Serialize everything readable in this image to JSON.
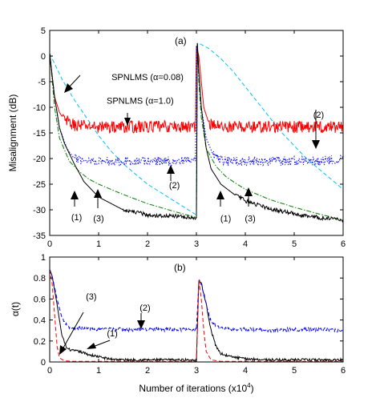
{
  "chart_data": [
    {
      "type": "line",
      "panel_label": "(a)",
      "xlabel": "",
      "ylabel": "Misalignment (dB)",
      "xlim": [
        0,
        6
      ],
      "ylim": [
        -35,
        5
      ],
      "xticks": [
        "0",
        "1",
        "2",
        "3",
        "4",
        "5",
        "6"
      ],
      "yticks": [
        "5",
        "0",
        "-5",
        "-10",
        "-15",
        "-20",
        "-25",
        "-30",
        "-35"
      ],
      "series": [
        {
          "name": "SPNLMS (α=0.08)",
          "color": "#00bfff",
          "style": "dashed",
          "x": [
            0,
            0.25,
            0.5,
            0.75,
            1.0,
            1.25,
            1.5,
            1.75,
            2.0,
            2.25,
            2.5,
            2.75,
            3.0,
            3.02,
            3.05,
            3.25,
            3.5,
            3.75,
            4.0,
            4.25,
            4.5,
            4.75,
            5.0,
            5.25,
            5.5,
            5.75,
            6.0
          ],
          "y": [
            0.5,
            -4.5,
            -8.5,
            -12,
            -15.5,
            -18.5,
            -21,
            -23,
            -25,
            -26.5,
            -28,
            -29.5,
            -31,
            2.5,
            2.5,
            1.5,
            -0.5,
            -3,
            -6,
            -9,
            -12,
            -15,
            -17.5,
            -20,
            -22,
            -24,
            -26
          ]
        },
        {
          "name": "SPNLMS (α=1.0)",
          "color": "#ff0000",
          "style": "solid",
          "noise": 1.2,
          "x": [
            0,
            0.05,
            0.1,
            0.2,
            0.3,
            0.5,
            1.0,
            1.5,
            2.0,
            2.5,
            2.98,
            3.0,
            3.05,
            3.1,
            3.15,
            3.25,
            3.5,
            4.0,
            4.5,
            5.0,
            5.5,
            6.0
          ],
          "y": [
            0.5,
            -4,
            -8,
            -11,
            -12.5,
            -13.5,
            -13.8,
            -13.8,
            -13.8,
            -13.8,
            -13.8,
            2,
            0,
            -5,
            -10,
            -13,
            -13.8,
            -13.8,
            -13.8,
            -13.8,
            -13.8,
            -13.8
          ]
        },
        {
          "name": "(2)",
          "color": "#0000ff",
          "style": "dotted",
          "noise": 0.9,
          "x": [
            0,
            0.1,
            0.2,
            0.35,
            0.5,
            1.0,
            1.5,
            2.0,
            2.5,
            2.98,
            3.0,
            3.05,
            3.1,
            3.2,
            3.35,
            3.5,
            4.0,
            4.5,
            5.0,
            5.5,
            6.0
          ],
          "y": [
            0.5,
            -8,
            -14,
            -18,
            -20,
            -20.5,
            -20.5,
            -20.5,
            -20.5,
            -20.5,
            2,
            -3,
            -10,
            -16,
            -19.5,
            -20.5,
            -20.5,
            -20.5,
            -20.5,
            -20.5,
            -20
          ]
        },
        {
          "name": "(3)",
          "color": "#008000",
          "style": "dashdot",
          "x": [
            0,
            0.1,
            0.2,
            0.4,
            0.6,
            0.8,
            1.0,
            1.5,
            2.0,
            2.5,
            3.0,
            3.02,
            3.05,
            3.1,
            3.2,
            3.4,
            3.6,
            3.8,
            4.0,
            4.5,
            5.0,
            5.5,
            6.0
          ],
          "y": [
            0.5,
            -10,
            -16,
            -20.5,
            -22.5,
            -24,
            -25,
            -27,
            -28.8,
            -30.2,
            -31.5,
            2.5,
            -5,
            -12,
            -18,
            -21.5,
            -23.5,
            -24.8,
            -26,
            -28,
            -29.5,
            -30.8,
            -32
          ]
        },
        {
          "name": "(1)",
          "color": "#000000",
          "style": "solid",
          "noise": 0.4,
          "x": [
            0,
            0.1,
            0.2,
            0.3,
            0.5,
            0.7,
            1.0,
            1.5,
            2.0,
            2.5,
            3.0,
            3.02,
            3.05,
            3.1,
            3.2,
            3.3,
            3.5,
            3.8,
            4.0,
            4.5,
            5.0,
            5.5,
            6.0
          ],
          "y": [
            0.5,
            -8,
            -14,
            -17,
            -21,
            -24.5,
            -27.5,
            -30,
            -31,
            -31.2,
            -31.5,
            2.5,
            -3,
            -10,
            -18,
            -22,
            -25,
            -27.2,
            -28.2,
            -29.8,
            -30.8,
            -31.5,
            -32
          ]
        }
      ],
      "annotations": [
        {
          "text": "SPNLMS (α=0.08)",
          "x": 2.0,
          "y": -4.7
        },
        {
          "text": "SPNLMS (α=1.0)",
          "x": 1.85,
          "y": -9.3
        },
        {
          "text": "(1)",
          "x": 0.55,
          "y": -32.0
        },
        {
          "text": "(3)",
          "x": 1.0,
          "y": -32.3
        },
        {
          "text": "(2)",
          "x": 2.55,
          "y": -25.8
        },
        {
          "text": "(1)",
          "x": 3.6,
          "y": -32.3
        },
        {
          "text": "(3)",
          "x": 4.1,
          "y": -32.3
        },
        {
          "text": "(2)",
          "x": 5.5,
          "y": -12.0
        }
      ]
    },
    {
      "type": "line",
      "panel_label": "(b)",
      "xlabel": "Number of iterations (x10",
      "xlabel_sup": "4",
      "xlabel_end": ")",
      "ylabel": "α(t)",
      "xlim": [
        0,
        6
      ],
      "ylim": [
        0,
        1
      ],
      "xticks": [
        "0",
        "1",
        "2",
        "3",
        "4",
        "5",
        "6"
      ],
      "yticks": [
        "1",
        "0.8",
        "0.6",
        "0.4",
        "0.2",
        "0"
      ],
      "series": [
        {
          "name": "(1)",
          "color": "#000000",
          "style": "solid",
          "noise": 0.012,
          "x": [
            0,
            0.05,
            0.15,
            0.25,
            0.35,
            0.45,
            0.6,
            0.8,
            1.0,
            1.2,
            1.5,
            2.0,
            2.5,
            2.98,
            3.0,
            3.05,
            3.1,
            3.2,
            3.3,
            3.4,
            3.5,
            3.7,
            4.0,
            4.5,
            5.0,
            5.5,
            6.0
          ],
          "y": [
            0.88,
            0.82,
            0.55,
            0.25,
            0.13,
            0.11,
            0.1,
            0.07,
            0.05,
            0.03,
            0.02,
            0.02,
            0.02,
            0.02,
            0.02,
            0.78,
            0.75,
            0.55,
            0.3,
            0.15,
            0.08,
            0.05,
            0.03,
            0.02,
            0.02,
            0.02,
            0.02
          ]
        },
        {
          "name": "(2)",
          "color": "#0000ff",
          "style": "dashed",
          "noise": 0.018,
          "x": [
            0,
            0.05,
            0.15,
            0.25,
            0.4,
            0.6,
            1.0,
            1.5,
            2.0,
            2.5,
            2.98,
            3.0,
            3.05,
            3.1,
            3.2,
            3.3,
            3.5,
            4.0,
            4.5,
            5.0,
            5.5,
            6.0
          ],
          "y": [
            0.88,
            0.82,
            0.6,
            0.42,
            0.33,
            0.32,
            0.31,
            0.31,
            0.31,
            0.31,
            0.31,
            0.31,
            0.78,
            0.75,
            0.55,
            0.38,
            0.32,
            0.31,
            0.3,
            0.31,
            0.31,
            0.3
          ]
        },
        {
          "name": "(3)",
          "color": "#ff0000",
          "style": "dashed",
          "x": [
            0,
            0.05,
            0.1,
            0.15,
            0.2,
            0.3,
            0.5,
            1.0,
            2.0,
            2.98,
            3.0,
            3.05,
            3.1,
            3.15,
            3.2,
            3.3,
            3.5,
            4.0,
            5.0,
            6.0
          ],
          "y": [
            0.88,
            0.75,
            0.45,
            0.15,
            0.04,
            0.01,
            0.005,
            0.005,
            0.005,
            0.005,
            0.005,
            0.78,
            0.6,
            0.3,
            0.1,
            0.02,
            0.005,
            0.005,
            0.005,
            0.005
          ]
        }
      ],
      "annotations": [
        {
          "text": "(3)",
          "x": 0.85,
          "y": 0.595
        },
        {
          "text": "(2)",
          "x": 1.95,
          "y": 0.49
        },
        {
          "text": "(1)",
          "x": 1.28,
          "y": 0.245
        }
      ]
    }
  ]
}
